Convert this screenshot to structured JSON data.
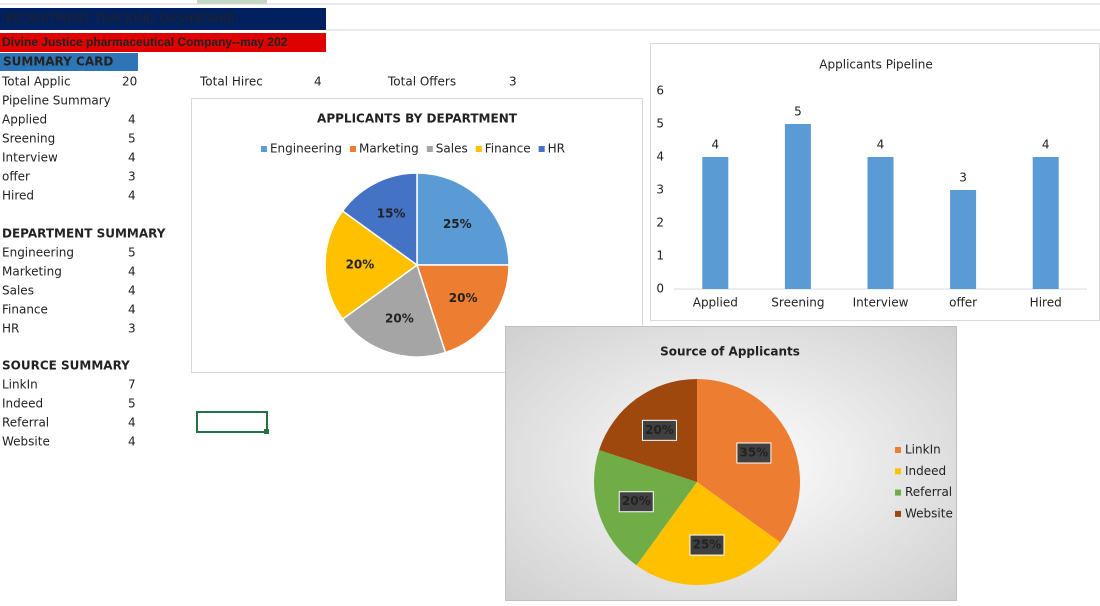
{
  "sheet": {
    "title": "RECRUITMENT TRACKING DASHBOARD",
    "subtitle": "Divine Justice pharmaceutical Company--may 202",
    "summary_header": "SUMMARY  CARD",
    "totals": [
      [
        "Total Applic",
        20
      ],
      [
        "Total Hirec",
        4
      ],
      [
        "Total Offers",
        3
      ]
    ],
    "pipeline": {
      "heading": "Pipeline  Summary",
      "rows": [
        [
          "Applied",
          4
        ],
        [
          "Sreening",
          5
        ],
        [
          "Interview",
          4
        ],
        [
          "offer",
          3
        ],
        [
          "Hired",
          4
        ]
      ]
    },
    "department": {
      "heading": "DEPARTMENT SUMMARY",
      "rows": [
        [
          "Engineering",
          5
        ],
        [
          "Marketing",
          4
        ],
        [
          "Sales",
          4
        ],
        [
          "Finance",
          4
        ],
        [
          "HR",
          3
        ]
      ]
    },
    "source": {
      "heading": "SOURCE SUMMARY",
      "rows": [
        [
          "LinkIn",
          7
        ],
        [
          "Indeed",
          5
        ],
        [
          "Referral",
          4
        ],
        [
          "Website",
          4
        ]
      ]
    }
  },
  "chart_data": [
    {
      "type": "pie",
      "title": "APPLICANTS BY DEPARTMENT",
      "categories": [
        "Engineering",
        "Marketing",
        "Sales",
        "Finance",
        "HR"
      ],
      "values": [
        25,
        20,
        20,
        20,
        15
      ],
      "value_labels": [
        "25%",
        "20%",
        "20%",
        "20%",
        "15%"
      ],
      "colors": [
        "#5b9bd5",
        "#ed7d31",
        "#a5a5a5",
        "#ffc000",
        "#4472c4"
      ],
      "legend": "top"
    },
    {
      "type": "bar",
      "title": "Applicants Pipeline",
      "categories": [
        "Applied",
        "Sreening",
        "Interview",
        "offer",
        "Hired"
      ],
      "values": [
        4,
        5,
        4,
        3,
        4
      ],
      "color": "#5b9bd5",
      "ylim": [
        0,
        6
      ],
      "yticks": [
        0,
        1,
        2,
        3,
        4,
        5,
        6
      ],
      "grid": false
    },
    {
      "type": "pie",
      "title": "Source of Applicants",
      "categories": [
        "LinkIn",
        "Indeed",
        "Referral",
        "Website"
      ],
      "values": [
        35,
        25,
        20,
        20
      ],
      "value_labels": [
        "35%",
        "25%",
        "20%",
        "20%"
      ],
      "colors": [
        "#ed7d31",
        "#ffc000",
        "#70ad47",
        "#9e480e"
      ],
      "legend": "right"
    }
  ]
}
